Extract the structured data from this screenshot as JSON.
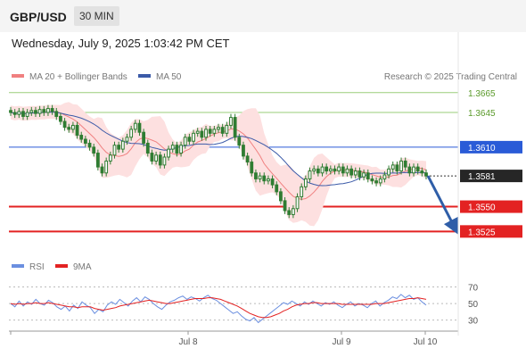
{
  "header": {
    "pair": "GBP/USD",
    "timeframe": "30 MIN"
  },
  "datetime": "Wednesday, July 9, 2025 1:03:42 PM CET",
  "legend": {
    "ma20_label": "MA 20 + Bollinger Bands",
    "ma50_label": "MA 50",
    "credit": "Research © 2025 Trading Central",
    "rsi_label": "RSI",
    "rsi_ma_label": "9MA"
  },
  "colors": {
    "ma20": "#f08080",
    "ma50": "#3b5aa8",
    "bollinger_fill": "#fde0e0",
    "candle": "#2f7d32",
    "resistance_green": "#9acd7a",
    "pivot_blue": "#2a5bd7",
    "support_red": "#e32222",
    "arrow": "#2f5ea8",
    "rsi": "#6b8fe0",
    "rsi_ma": "#e32222"
  },
  "chart_data": [
    {
      "type": "candlestick",
      "ylim": [
        1.351,
        1.3672
      ],
      "x_ticks": [
        "Jul 8",
        "Jul 9",
        "Jul 10"
      ],
      "levels": [
        {
          "label": "1.3665",
          "value": 1.3665,
          "kind": "resistance"
        },
        {
          "label": "1.3645",
          "value": 1.3645,
          "kind": "resistance"
        },
        {
          "label": "1.3610",
          "value": 1.361,
          "kind": "pivot"
        },
        {
          "label": "1.3581",
          "value": 1.3581,
          "kind": "last"
        },
        {
          "label": "1.3550",
          "value": 1.355,
          "kind": "support"
        },
        {
          "label": "1.3525",
          "value": 1.3525,
          "kind": "support"
        }
      ],
      "forecast": {
        "from": 1.3581,
        "to": 1.3529
      },
      "close_path": [
        1.3645,
        1.3643,
        1.3646,
        1.3641,
        1.3645,
        1.3647,
        1.3644,
        1.3648,
        1.3645,
        1.3649,
        1.3646,
        1.3641,
        1.3636,
        1.363,
        1.3628,
        1.3632,
        1.3622,
        1.3618,
        1.3614,
        1.361,
        1.3604,
        1.359,
        1.3584,
        1.3596,
        1.3602,
        1.3612,
        1.3608,
        1.3616,
        1.362,
        1.3628,
        1.3634,
        1.3625,
        1.3614,
        1.3604,
        1.3596,
        1.3602,
        1.3592,
        1.36,
        1.3608,
        1.3612,
        1.3604,
        1.3612,
        1.362,
        1.3616,
        1.3624,
        1.3626,
        1.362,
        1.3628,
        1.3624,
        1.3628,
        1.363,
        1.3624,
        1.3632,
        1.364,
        1.362,
        1.3612,
        1.3601,
        1.3595,
        1.3584,
        1.3578,
        1.3581,
        1.3576,
        1.3578,
        1.3572,
        1.3565,
        1.3556,
        1.3546,
        1.3542,
        1.3548,
        1.356,
        1.357,
        1.3578,
        1.3586,
        1.3588,
        1.3584,
        1.359,
        1.3586,
        1.3588,
        1.3586,
        1.359,
        1.3584,
        1.3588,
        1.3582,
        1.3586,
        1.358,
        1.3584,
        1.3578,
        1.3576,
        1.3574,
        1.3578,
        1.3582,
        1.3588,
        1.3592,
        1.3586,
        1.3596,
        1.359,
        1.3584,
        1.359,
        1.3586,
        1.3584,
        1.3581
      ]
    },
    {
      "type": "line",
      "title": "RSI",
      "ylim": [
        22,
        76
      ],
      "y_ticks": [
        30,
        50,
        70
      ],
      "x_ticks": [
        "Jul 8",
        "Jul 9",
        "Jul 10"
      ],
      "rsi": [
        50,
        46,
        53,
        47,
        52,
        49,
        55,
        50,
        48,
        54,
        51,
        46,
        43,
        47,
        41,
        48,
        44,
        52,
        48,
        45,
        38,
        43,
        40,
        48,
        52,
        49,
        55,
        51,
        47,
        53,
        57,
        52,
        58,
        55,
        50,
        46,
        43,
        48,
        52,
        54,
        57,
        59,
        55,
        58,
        56,
        53,
        57,
        60,
        56,
        54,
        50,
        46,
        42,
        38,
        40,
        35,
        31,
        29,
        33,
        27,
        31,
        35,
        39,
        43,
        47,
        51,
        49,
        53,
        50,
        47,
        52,
        49,
        53,
        50,
        47,
        51,
        49,
        52,
        48,
        45,
        49,
        52,
        47,
        50,
        48,
        45,
        50,
        53,
        47,
        51,
        54,
        58,
        56,
        61,
        57,
        60,
        55,
        57,
        52,
        48
      ],
      "rsi_ma": [
        50,
        49,
        50,
        49,
        50,
        50,
        51,
        50,
        50,
        51,
        50,
        49,
        48,
        47,
        46,
        46,
        45,
        46,
        46,
        46,
        44,
        43,
        42,
        43,
        44,
        45,
        47,
        48,
        49,
        50,
        51,
        52,
        53,
        54,
        53,
        52,
        51,
        50,
        50,
        51,
        52,
        53,
        54,
        55,
        56,
        56,
        56,
        57,
        57,
        56,
        55,
        53,
        51,
        49,
        47,
        44,
        41,
        38,
        36,
        34,
        33,
        33,
        34,
        36,
        38,
        41,
        43,
        46,
        48,
        49,
        50,
        50,
        51,
        51,
        50,
        50,
        50,
        50,
        50,
        49,
        49,
        49,
        49,
        49,
        49,
        49,
        49,
        50,
        50,
        50,
        51,
        52,
        53,
        54,
        55,
        56,
        56,
        57,
        56,
        55
      ]
    }
  ]
}
